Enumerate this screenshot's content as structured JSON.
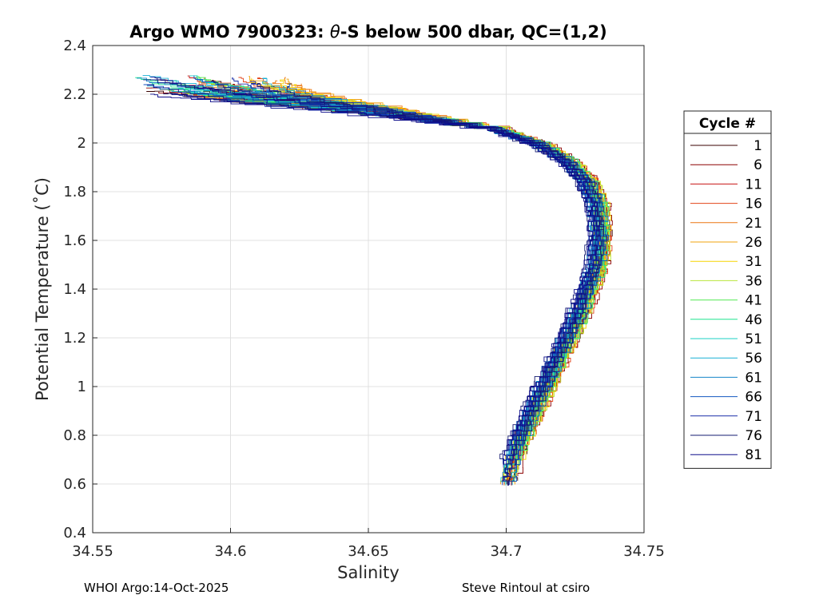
{
  "chart_data": {
    "type": "line",
    "title_part1": "Argo WMO 7900323: ",
    "title_theta": "θ",
    "title_part2": "-S below 500 dbar,  QC=(1,2)",
    "xlabel": "Salinity",
    "ylabel": "Potential Temperature (˚C)",
    "xlim": [
      34.55,
      34.75
    ],
    "ylim": [
      0.4,
      2.4
    ],
    "x_ticks": [
      34.55,
      34.6,
      34.65,
      34.7,
      34.75
    ],
    "x_tick_labels": [
      "34.55",
      "34.6",
      "34.65",
      "34.7",
      "34.75"
    ],
    "y_ticks": [
      0.4,
      0.6,
      0.8,
      1.0,
      1.2,
      1.4,
      1.6,
      1.8,
      2.0,
      2.2,
      2.4
    ],
    "y_tick_labels": [
      "0.4",
      "0.6",
      "0.8",
      "1",
      "1.2",
      "1.4",
      "1.6",
      "1.8",
      "2",
      "2.2",
      "2.4"
    ],
    "grid": true,
    "legend": {
      "title": "Cycle #",
      "position": "right",
      "entries": [
        {
          "label": "1",
          "color": "#3a0000"
        },
        {
          "label": "6",
          "color": "#8b0000"
        },
        {
          "label": "11",
          "color": "#c81414"
        },
        {
          "label": "16",
          "color": "#e2441a"
        },
        {
          "label": "21",
          "color": "#ec7712"
        },
        {
          "label": "26",
          "color": "#f0a30c"
        },
        {
          "label": "31",
          "color": "#f5d400"
        },
        {
          "label": "36",
          "color": "#b8e43a"
        },
        {
          "label": "41",
          "color": "#55ea55"
        },
        {
          "label": "46",
          "color": "#1fe38f"
        },
        {
          "label": "51",
          "color": "#1bd2c4"
        },
        {
          "label": "56",
          "color": "#19b0d6"
        },
        {
          "label": "61",
          "color": "#1585c8"
        },
        {
          "label": "66",
          "color": "#1257c0"
        },
        {
          "label": "71",
          "color": "#1a2ea8"
        },
        {
          "label": "76",
          "color": "#161c70"
        },
        {
          "label": "81",
          "color": "#0d0d8a"
        }
      ]
    },
    "series_template": {
      "description": "θ-S profiles share a common curve; each cycle is offset slightly in salinity",
      "base_curve": [
        {
          "S": 34.6,
          "T": 2.22
        },
        {
          "S": 34.64,
          "T": 2.16
        },
        {
          "S": 34.68,
          "T": 2.1
        },
        {
          "S": 34.7,
          "T": 2.05
        },
        {
          "S": 34.715,
          "T": 1.99
        },
        {
          "S": 34.725,
          "T": 1.92
        },
        {
          "S": 34.732,
          "T": 1.84
        },
        {
          "S": 34.736,
          "T": 1.74
        },
        {
          "S": 34.737,
          "T": 1.62
        },
        {
          "S": 34.736,
          "T": 1.5
        },
        {
          "S": 34.733,
          "T": 1.4
        },
        {
          "S": 34.729,
          "T": 1.28
        },
        {
          "S": 34.724,
          "T": 1.16
        },
        {
          "S": 34.719,
          "T": 1.04
        },
        {
          "S": 34.714,
          "T": 0.92
        },
        {
          "S": 34.709,
          "T": 0.8
        },
        {
          "S": 34.705,
          "T": 0.68
        },
        {
          "S": 34.703,
          "T": 0.58
        }
      ],
      "cycle_count": 81
    },
    "footer_left": "WHOI Argo:14-Oct-2025",
    "footer_right": "Steve Rintoul at csiro"
  }
}
